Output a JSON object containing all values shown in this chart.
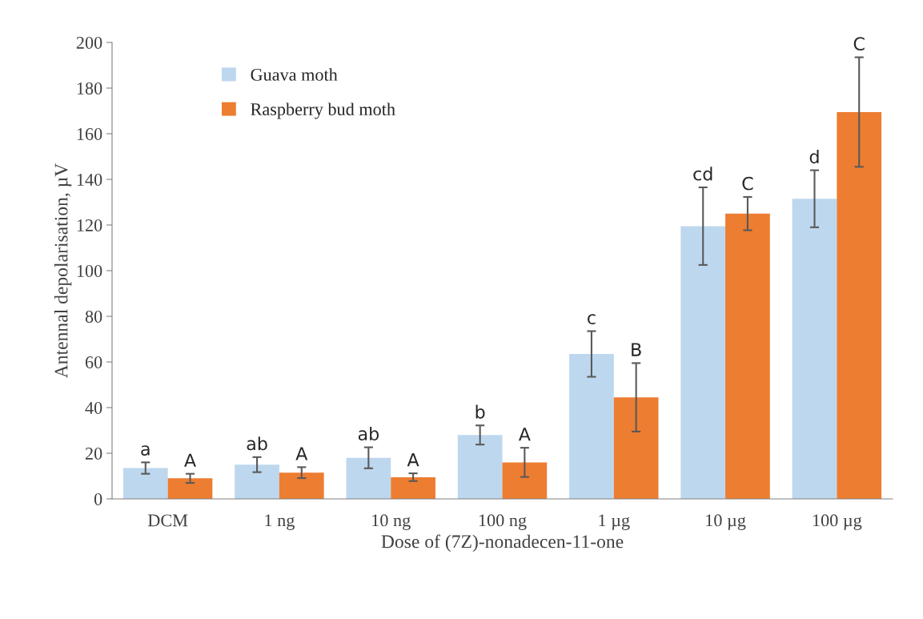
{
  "chart_data": {
    "type": "bar",
    "xlabel": "Dose of (7Z)-nonadecen-11-one",
    "ylabel": "Antennal depolarisation, µV",
    "categories": [
      "DCM",
      "1 ng",
      "10 ng",
      "100 ng",
      "1 µg",
      "10 µg",
      "100 µg"
    ],
    "series": [
      {
        "name": "Guava moth",
        "color": "#bdd7ee",
        "values": [
          13.5,
          15,
          18,
          28,
          63.5,
          119.5,
          131.5
        ],
        "errors": [
          2.5,
          3.3,
          4.6,
          4.2,
          10,
          17,
          12.5
        ]
      },
      {
        "name": "Raspberry bud moth",
        "color": "#ed7d31",
        "values": [
          9,
          11.5,
          9.5,
          16,
          44.5,
          125,
          169.5
        ],
        "errors": [
          2,
          2.4,
          1.7,
          6.4,
          15,
          7.3,
          24
        ]
      }
    ],
    "ylim": [
      0,
      200
    ],
    "yticks": [
      0,
      20,
      40,
      60,
      80,
      100,
      120,
      140,
      160,
      180,
      200
    ],
    "grid": false,
    "legend": "top left",
    "annotations": [
      "a",
      "A",
      "ab",
      "A",
      "ab",
      "A",
      "b",
      "A",
      "c",
      "B",
      "cd",
      "C",
      "d",
      "C"
    ]
  }
}
